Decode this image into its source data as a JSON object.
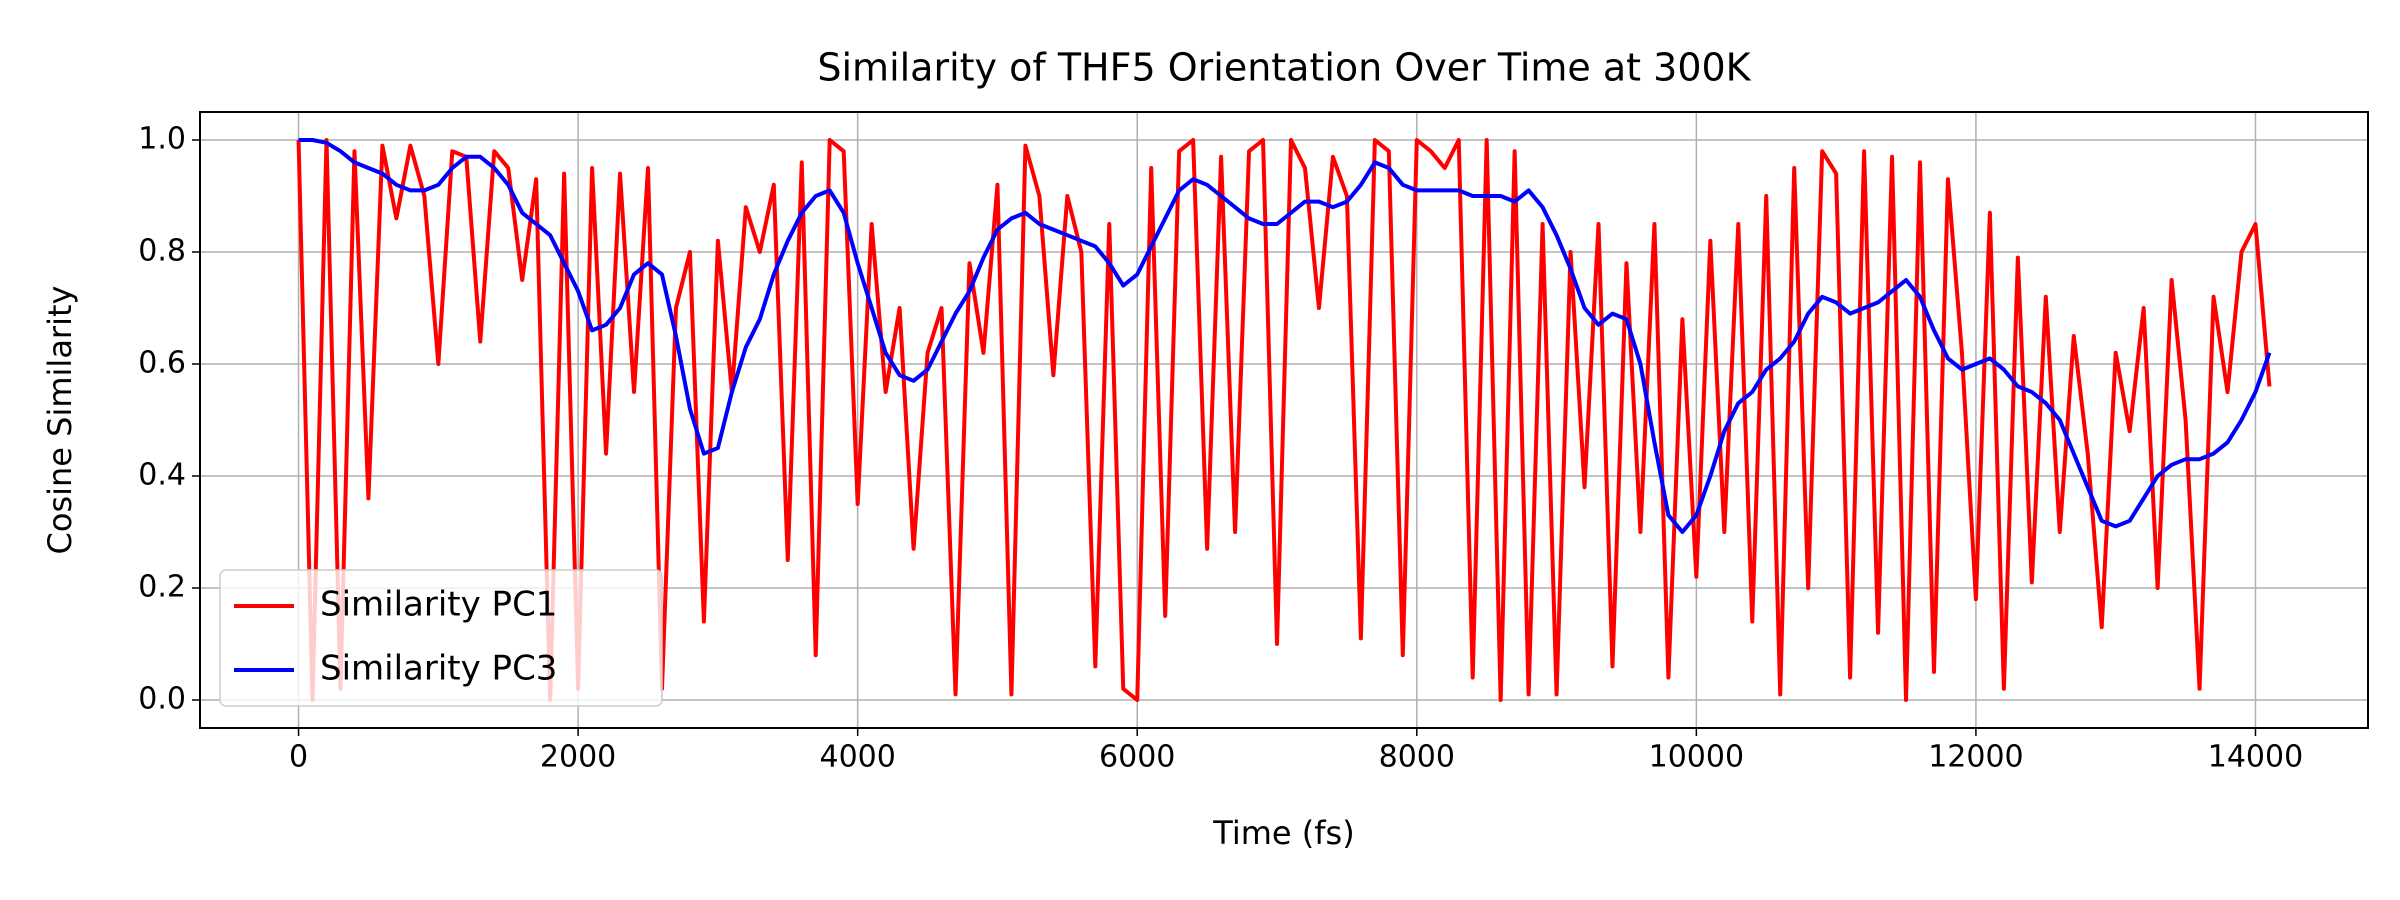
{
  "chart_data": {
    "type": "line",
    "title": "Similarity of THF5 Orientation Over Time at 300K",
    "x_label": "Time (fs)",
    "y_label": "Cosine Similarity",
    "x": [
      0,
      100,
      200,
      300,
      400,
      500,
      600,
      700,
      800,
      900,
      1000,
      1100,
      1200,
      1300,
      1400,
      1500,
      1600,
      1700,
      1800,
      1900,
      2000,
      2100,
      2200,
      2300,
      2400,
      2500,
      2600,
      2700,
      2800,
      2900,
      3000,
      3100,
      3200,
      3300,
      3400,
      3500,
      3600,
      3700,
      3800,
      3900,
      4000,
      4100,
      4200,
      4300,
      4400,
      4500,
      4600,
      4700,
      4800,
      4900,
      5000,
      5100,
      5200,
      5300,
      5400,
      5500,
      5600,
      5700,
      5800,
      5900,
      6000,
      6100,
      6200,
      6300,
      6400,
      6500,
      6600,
      6700,
      6800,
      6900,
      7000,
      7100,
      7200,
      7300,
      7400,
      7500,
      7600,
      7700,
      7800,
      7900,
      8000,
      8100,
      8200,
      8300,
      8400,
      8500,
      8600,
      8700,
      8800,
      8900,
      9000,
      9100,
      9200,
      9300,
      9400,
      9500,
      9600,
      9700,
      9800,
      9900,
      10000,
      10100,
      10200,
      10300,
      10400,
      10500,
      10600,
      10700,
      10800,
      10900,
      11000,
      11100,
      11200,
      11300,
      11400,
      11500,
      11600,
      11700,
      11800,
      11900,
      12000,
      12100,
      12200,
      12300,
      12400,
      12500,
      12600,
      12700,
      12800,
      12900,
      13000,
      13100,
      13200,
      13300,
      13400,
      13500,
      13600,
      13700,
      13800,
      13900,
      14000,
      14100
    ],
    "series": [
      {
        "name": "Similarity PC1",
        "color": "#ff0000",
        "values": [
          1.0,
          0.0,
          1.0,
          0.02,
          0.98,
          0.36,
          0.99,
          0.86,
          0.99,
          0.9,
          0.6,
          0.98,
          0.97,
          0.64,
          0.98,
          0.95,
          0.75,
          0.93,
          0.0,
          0.94,
          0.02,
          0.95,
          0.44,
          0.94,
          0.55,
          0.95,
          0.02,
          0.7,
          0.8,
          0.14,
          0.82,
          0.55,
          0.88,
          0.8,
          0.92,
          0.25,
          0.96,
          0.08,
          1.0,
          0.98,
          0.35,
          0.85,
          0.55,
          0.7,
          0.27,
          0.62,
          0.7,
          0.01,
          0.78,
          0.62,
          0.92,
          0.01,
          0.99,
          0.9,
          0.58,
          0.9,
          0.8,
          0.06,
          0.85,
          0.02,
          0.0,
          0.95,
          0.15,
          0.98,
          1.0,
          0.27,
          0.97,
          0.3,
          0.98,
          1.0,
          0.1,
          1.0,
          0.95,
          0.7,
          0.97,
          0.9,
          0.11,
          1.0,
          0.98,
          0.08,
          1.0,
          0.98,
          0.95,
          1.0,
          0.04,
          1.0,
          0.0,
          0.98,
          0.01,
          0.85,
          0.01,
          0.8,
          0.38,
          0.85,
          0.06,
          0.78,
          0.3,
          0.85,
          0.04,
          0.68,
          0.22,
          0.82,
          0.3,
          0.85,
          0.14,
          0.9,
          0.01,
          0.95,
          0.2,
          0.98,
          0.94,
          0.04,
          0.98,
          0.12,
          0.97,
          0.0,
          0.96,
          0.05,
          0.93,
          0.62,
          0.18,
          0.87,
          0.02,
          0.79,
          0.21,
          0.72,
          0.3,
          0.65,
          0.44,
          0.13,
          0.62,
          0.48,
          0.7,
          0.2,
          0.75,
          0.5,
          0.02,
          0.72,
          0.55,
          0.8,
          0.85,
          0.56
        ]
      },
      {
        "name": "Similarity PC3",
        "color": "#0000ff",
        "values": [
          1.0,
          1.0,
          0.995,
          0.98,
          0.96,
          0.95,
          0.94,
          0.92,
          0.91,
          0.91,
          0.92,
          0.95,
          0.97,
          0.97,
          0.95,
          0.92,
          0.87,
          0.85,
          0.83,
          0.78,
          0.73,
          0.66,
          0.67,
          0.7,
          0.76,
          0.78,
          0.76,
          0.65,
          0.52,
          0.44,
          0.45,
          0.55,
          0.63,
          0.68,
          0.76,
          0.82,
          0.87,
          0.9,
          0.91,
          0.87,
          0.78,
          0.7,
          0.62,
          0.58,
          0.57,
          0.59,
          0.64,
          0.69,
          0.73,
          0.79,
          0.84,
          0.86,
          0.87,
          0.85,
          0.84,
          0.83,
          0.82,
          0.81,
          0.78,
          0.74,
          0.76,
          0.81,
          0.86,
          0.91,
          0.93,
          0.92,
          0.9,
          0.88,
          0.86,
          0.85,
          0.85,
          0.87,
          0.89,
          0.89,
          0.88,
          0.89,
          0.92,
          0.96,
          0.95,
          0.92,
          0.91,
          0.91,
          0.91,
          0.91,
          0.9,
          0.9,
          0.9,
          0.89,
          0.91,
          0.88,
          0.83,
          0.77,
          0.7,
          0.67,
          0.69,
          0.68,
          0.6,
          0.46,
          0.33,
          0.3,
          0.33,
          0.4,
          0.48,
          0.53,
          0.55,
          0.59,
          0.61,
          0.64,
          0.69,
          0.72,
          0.71,
          0.69,
          0.7,
          0.71,
          0.73,
          0.75,
          0.72,
          0.66,
          0.61,
          0.59,
          0.6,
          0.61,
          0.59,
          0.56,
          0.55,
          0.53,
          0.5,
          0.44,
          0.38,
          0.32,
          0.31,
          0.32,
          0.36,
          0.4,
          0.42,
          0.43,
          0.43,
          0.44,
          0.46,
          0.5,
          0.55,
          0.62
        ]
      }
    ],
    "xlim": [
      -705,
      14805
    ],
    "ylim": [
      -0.05,
      1.05
    ],
    "xticks": [
      0,
      2000,
      4000,
      6000,
      8000,
      10000,
      12000,
      14000
    ],
    "yticks": [
      {
        "value": 0,
        "label": "0.0"
      },
      0.2,
      0.4,
      0.6,
      0.8,
      {
        "value": 1,
        "label": "1.0"
      }
    ],
    "grid": true,
    "legend": "lower left"
  }
}
